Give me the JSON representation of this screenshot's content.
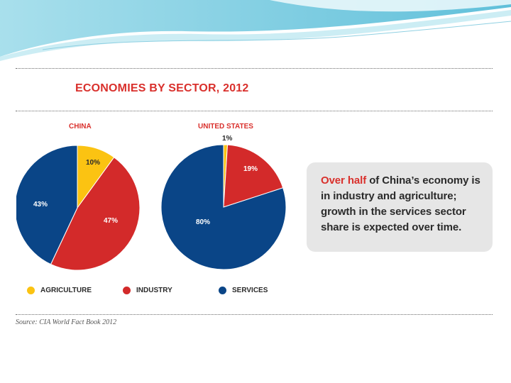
{
  "title": "ECONOMIES BY SECTOR, 2012",
  "colors": {
    "agriculture": "#fbc312",
    "industry": "#d32a2a",
    "services": "#0a4587",
    "accent": "#d9302c"
  },
  "chart_data": [
    {
      "type": "pie",
      "title": "CHINA",
      "slices": [
        {
          "name": "AGRICULTURE",
          "value": 10,
          "label": "10%"
        },
        {
          "name": "INDUSTRY",
          "value": 47,
          "label": "47%"
        },
        {
          "name": "SERVICES",
          "value": 43,
          "label": "43%"
        }
      ]
    },
    {
      "type": "pie",
      "title": "UNITED STATES",
      "slices": [
        {
          "name": "AGRICULTURE",
          "value": 1,
          "label": "1%"
        },
        {
          "name": "INDUSTRY",
          "value": 19,
          "label": "19%"
        },
        {
          "name": "SERVICES",
          "value": 80,
          "label": "80%"
        }
      ]
    }
  ],
  "legend": [
    {
      "key": "agriculture",
      "label": "AGRICULTURE"
    },
    {
      "key": "industry",
      "label": "INDUSTRY"
    },
    {
      "key": "services",
      "label": "SERVICES"
    }
  ],
  "callout": {
    "highlight": "Over half",
    "text": " of China’s economy is in industry and agriculture; growth in the services sector share is expected over time."
  },
  "source": "Source: CIA World Fact Book 2012"
}
